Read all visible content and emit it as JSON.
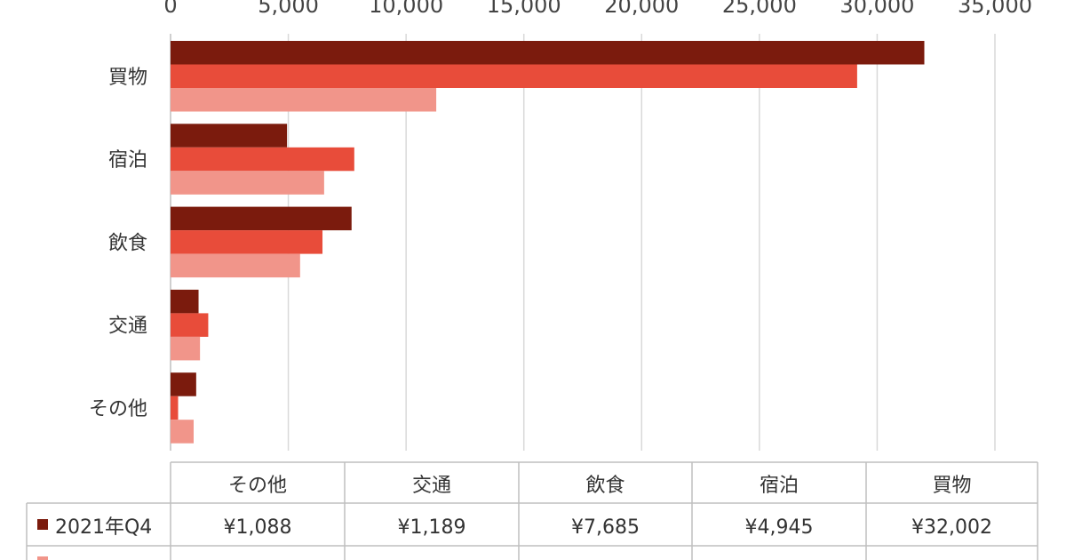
{
  "chart_data": {
    "type": "bar",
    "orientation": "horizontal",
    "categories": [
      "買物",
      "宿泊",
      "飲食",
      "交通",
      "その他"
    ],
    "series": [
      {
        "name": "2021年Q4",
        "color": "#7b1b0d",
        "values": [
          32002,
          4945,
          7685,
          1189,
          1088
        ]
      },
      {
        "name": "",
        "color": "#e84c3a",
        "values": [
          29150,
          7800,
          6450,
          1600,
          320
        ]
      },
      {
        "name": "",
        "color": "#f1958a",
        "values": [
          11280,
          6520,
          5500,
          1250,
          980
        ]
      }
    ],
    "x_ticks": [
      "0",
      "5,000",
      "10,000",
      "15,000",
      "20,000",
      "25,000",
      "30,000",
      "35,000"
    ],
    "xlim": [
      0,
      35000
    ],
    "grid": true,
    "data_table": {
      "columns": [
        "その他",
        "交通",
        "飲食",
        "宿泊",
        "買物"
      ],
      "rows": [
        {
          "series": "2021年Q4",
          "values": [
            "¥1,088",
            "¥1,189",
            "¥7,685",
            "¥4,945",
            "¥32,002"
          ]
        }
      ]
    }
  }
}
